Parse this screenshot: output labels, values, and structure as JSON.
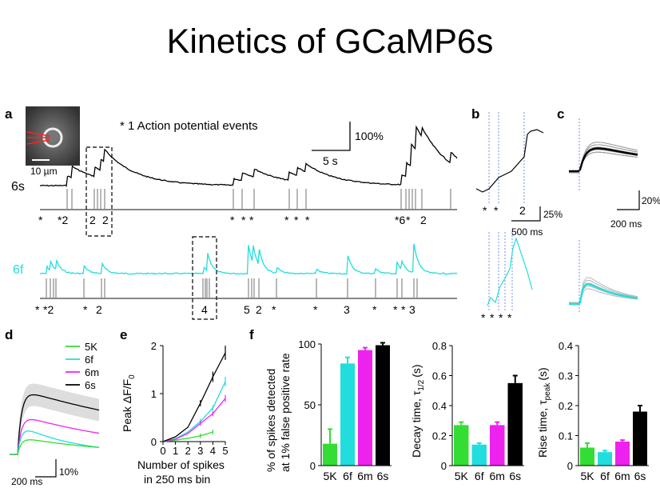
{
  "slide": {
    "title": "Kinetics of GCaMP6s"
  },
  "panels": {
    "a": {
      "label": "a",
      "legend": "* 1 Action potential events",
      "scale_y": "100%",
      "scale_x": "5 s",
      "scale_bar_image": "10 µm",
      "trace_6s_label": "6s",
      "trace_6f_label": "6f",
      "events_6s": [
        "*",
        "*2",
        "2",
        "2",
        "*",
        "*",
        "*",
        "*",
        "*",
        "*",
        "*6",
        "*",
        "2"
      ],
      "events_6f": [
        "*",
        "*2",
        "*",
        "2",
        "4",
        "5",
        "2",
        "*",
        "*",
        "3",
        "*",
        "*",
        "*",
        "3"
      ]
    },
    "b": {
      "label": "b",
      "events_6s": [
        "*",
        "*",
        "2"
      ],
      "events_6f": [
        "*",
        "*",
        "*",
        "*"
      ],
      "scale_y": "25%",
      "scale_x": "500 ms"
    },
    "c": {
      "label": "c",
      "scale_y": "20%",
      "scale_x": "200 ms"
    },
    "d": {
      "label": "d",
      "legend": [
        {
          "name": "5K",
          "color": "#33dd33"
        },
        {
          "name": "6f",
          "color": "#22dddd"
        },
        {
          "name": "6m",
          "color": "#ee22ee"
        },
        {
          "name": "6s",
          "color": "#000000"
        }
      ],
      "scale_y": "10%",
      "scale_x": "200 ms"
    },
    "e": {
      "label": "e",
      "ylabel": "Peak ΔF/F",
      "ylabel_sub": "0",
      "xlabel_1": "Number of spikes",
      "xlabel_2": "in 250 ms bin"
    },
    "f": {
      "label": "f"
    }
  },
  "colors": {
    "g5k": "#33dd33",
    "g6f": "#22dddd",
    "g6m": "#ee22ee",
    "g6s": "#000000",
    "raster": "#888888"
  },
  "chart_data": [
    {
      "type": "line",
      "panel": "e",
      "x": [
        1,
        2,
        3,
        4,
        5
      ],
      "xlim": [
        0,
        5
      ],
      "ylim": [
        0,
        2
      ],
      "xticks": [
        0,
        1,
        2,
        3,
        4,
        5
      ],
      "yticks": [
        0,
        1,
        2
      ],
      "series": [
        {
          "name": "5K",
          "values": [
            0.03,
            0.07,
            0.12,
            0.2,
            null
          ]
        },
        {
          "name": "6f",
          "values": [
            0.06,
            0.2,
            0.42,
            0.7,
            1.25
          ]
        },
        {
          "name": "6m",
          "values": [
            0.05,
            0.17,
            0.38,
            0.58,
            0.9
          ]
        },
        {
          "name": "6s",
          "values": [
            0.1,
            0.3,
            0.8,
            1.35,
            1.85
          ]
        }
      ]
    },
    {
      "type": "bar",
      "panel": "f",
      "ylabel_1": "% of spikes detected",
      "ylabel_2": "at 1% false positive rate",
      "categories": [
        "5K",
        "6f",
        "6m",
        "6s"
      ],
      "values": [
        18,
        84,
        95,
        99
      ],
      "errors": [
        12,
        5,
        2,
        2
      ],
      "ylim": [
        0,
        100
      ],
      "yticks": [
        0,
        50,
        100
      ]
    },
    {
      "type": "bar",
      "panel": "f",
      "ylabel": "Decay time, τ",
      "ylabel_sub": "1/2",
      "ylabel_unit": "(s)",
      "categories": [
        "5K",
        "6f",
        "6m",
        "6s"
      ],
      "values": [
        0.27,
        0.14,
        0.27,
        0.55
      ],
      "errors": [
        0.02,
        0.01,
        0.02,
        0.05
      ],
      "ylim": [
        0,
        0.8
      ],
      "yticks": [
        0,
        0.2,
        0.4,
        0.6,
        0.8
      ]
    },
    {
      "type": "bar",
      "panel": "f",
      "ylabel": "Rise time, τ",
      "ylabel_sub": "peak",
      "ylabel_unit": "(s)",
      "categories": [
        "5K",
        "6f",
        "6m",
        "6s"
      ],
      "values": [
        0.06,
        0.045,
        0.08,
        0.18
      ],
      "errors": [
        0.015,
        0.005,
        0.005,
        0.02
      ],
      "ylim": [
        0,
        0.4
      ],
      "yticks": [
        0,
        0.1,
        0.2,
        0.3,
        0.4
      ]
    }
  ]
}
